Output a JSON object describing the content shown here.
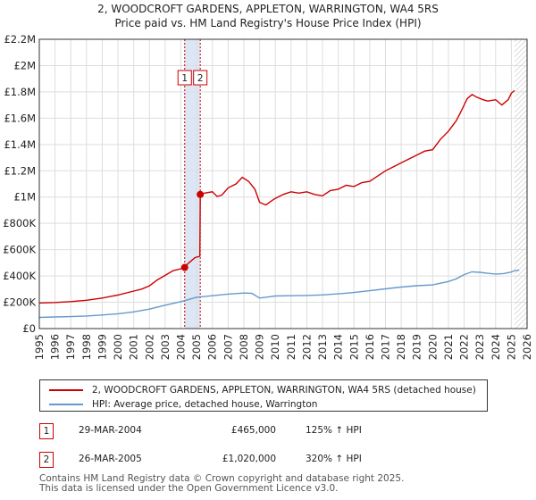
{
  "chart_data": {
    "type": "line",
    "title": [
      "2, WOODCROFT GARDENS, APPLETON, WARRINGTON, WA4 5RS",
      "Price paid vs. HM Land Registry's House Price Index (HPI)"
    ],
    "x_range": [
      1995,
      2026
    ],
    "ylim": [
      0,
      2200000
    ],
    "y_ticks": [
      0,
      200000,
      400000,
      600000,
      800000,
      1000000,
      1200000,
      1400000,
      1600000,
      1800000,
      2000000,
      2200000
    ],
    "y_tick_labels": [
      "£0",
      "£200K",
      "£400K",
      "£600K",
      "£800K",
      "£1M",
      "£1.2M",
      "£1.4M",
      "£1.6M",
      "£1.8M",
      "£2M",
      "£2.2M"
    ],
    "x_ticks": [
      1995,
      1996,
      1997,
      1998,
      1999,
      2000,
      2001,
      2002,
      2003,
      2004,
      2005,
      2006,
      2007,
      2008,
      2009,
      2010,
      2011,
      2012,
      2013,
      2014,
      2015,
      2016,
      2017,
      2018,
      2019,
      2020,
      2021,
      2022,
      2023,
      2024,
      2025,
      2026
    ],
    "grid": true,
    "sale_span": [
      2004.24,
      2005.23
    ],
    "hatch_from": 2025.2,
    "series": [
      {
        "name": "2, WOODCROFT GARDENS, APPLETON, WARRINGTON, WA4 5RS (detached house)",
        "color": "#cc0000",
        "points": [
          [
            1995,
            195000
          ],
          [
            1996,
            198000
          ],
          [
            1997,
            205000
          ],
          [
            1998,
            215000
          ],
          [
            1999,
            232000
          ],
          [
            2000,
            255000
          ],
          [
            2001,
            285000
          ],
          [
            2001.5,
            300000
          ],
          [
            2002,
            325000
          ],
          [
            2002.5,
            370000
          ],
          [
            2003,
            405000
          ],
          [
            2003.5,
            440000
          ],
          [
            2004,
            455000
          ],
          [
            2004.24,
            465000
          ],
          [
            2004.5,
            500000
          ],
          [
            2004.9,
            540000
          ],
          [
            2005.2,
            550000
          ],
          [
            2005.23,
            1020000
          ],
          [
            2005.5,
            1030000
          ],
          [
            2006,
            1040000
          ],
          [
            2006.3,
            1005000
          ],
          [
            2006.6,
            1015000
          ],
          [
            2007,
            1070000
          ],
          [
            2007.5,
            1100000
          ],
          [
            2007.9,
            1150000
          ],
          [
            2008.3,
            1120000
          ],
          [
            2008.7,
            1060000
          ],
          [
            2009,
            960000
          ],
          [
            2009.4,
            940000
          ],
          [
            2009.8,
            975000
          ],
          [
            2010,
            990000
          ],
          [
            2010.5,
            1020000
          ],
          [
            2011,
            1040000
          ],
          [
            2011.5,
            1030000
          ],
          [
            2012,
            1040000
          ],
          [
            2012.5,
            1020000
          ],
          [
            2013,
            1010000
          ],
          [
            2013.5,
            1050000
          ],
          [
            2014,
            1060000
          ],
          [
            2014.5,
            1090000
          ],
          [
            2015,
            1080000
          ],
          [
            2015.5,
            1110000
          ],
          [
            2016,
            1120000
          ],
          [
            2016.5,
            1160000
          ],
          [
            2017,
            1200000
          ],
          [
            2017.5,
            1230000
          ],
          [
            2018,
            1260000
          ],
          [
            2018.5,
            1290000
          ],
          [
            2019,
            1320000
          ],
          [
            2019.5,
            1350000
          ],
          [
            2020,
            1360000
          ],
          [
            2020.5,
            1440000
          ],
          [
            2021,
            1500000
          ],
          [
            2021.5,
            1580000
          ],
          [
            2021.8,
            1650000
          ],
          [
            2022.2,
            1750000
          ],
          [
            2022.5,
            1780000
          ],
          [
            2022.8,
            1760000
          ],
          [
            2023.2,
            1740000
          ],
          [
            2023.5,
            1730000
          ],
          [
            2024,
            1740000
          ],
          [
            2024.4,
            1700000
          ],
          [
            2024.8,
            1740000
          ],
          [
            2025,
            1790000
          ],
          [
            2025.2,
            1810000
          ]
        ]
      },
      {
        "name": "HPI: Average price, detached house, Warrington",
        "color": "#6699cc",
        "points": [
          [
            1995,
            85000
          ],
          [
            1996,
            88000
          ],
          [
            1997,
            91000
          ],
          [
            1998,
            96000
          ],
          [
            1999,
            103000
          ],
          [
            2000,
            113000
          ],
          [
            2001,
            127000
          ],
          [
            2002,
            148000
          ],
          [
            2003,
            178000
          ],
          [
            2004,
            205000
          ],
          [
            2005,
            238000
          ],
          [
            2006,
            250000
          ],
          [
            2007,
            262000
          ],
          [
            2008,
            270000
          ],
          [
            2008.5,
            268000
          ],
          [
            2009,
            232000
          ],
          [
            2009.5,
            240000
          ],
          [
            2010,
            248000
          ],
          [
            2011,
            250000
          ],
          [
            2012,
            252000
          ],
          [
            2013,
            256000
          ],
          [
            2014,
            264000
          ],
          [
            2015,
            274000
          ],
          [
            2016,
            288000
          ],
          [
            2017,
            302000
          ],
          [
            2018,
            316000
          ],
          [
            2019,
            326000
          ],
          [
            2020,
            332000
          ],
          [
            2021,
            358000
          ],
          [
            2021.5,
            378000
          ],
          [
            2022,
            410000
          ],
          [
            2022.5,
            432000
          ],
          [
            2023,
            428000
          ],
          [
            2023.5,
            420000
          ],
          [
            2024,
            415000
          ],
          [
            2024.5,
            418000
          ],
          [
            2025,
            430000
          ],
          [
            2025.2,
            440000
          ],
          [
            2025.5,
            445000
          ]
        ]
      }
    ],
    "markers": [
      {
        "label": "1",
        "x": 2004.24,
        "y": 465000
      },
      {
        "label": "2",
        "x": 2005.23,
        "y": 1020000
      }
    ]
  },
  "legend": {
    "property_label": "2, WOODCROFT GARDENS, APPLETON, WARRINGTON, WA4 5RS (detached house)",
    "hpi_label": "HPI: Average price, detached house, Warrington"
  },
  "transactions": [
    {
      "num": "1",
      "date": "29-MAR-2004",
      "price": "£465,000",
      "hpi": "125% ↑ HPI"
    },
    {
      "num": "2",
      "date": "26-MAR-2005",
      "price": "£1,020,000",
      "hpi": "320% ↑ HPI"
    }
  ],
  "footer": {
    "line1": "Contains HM Land Registry data © Crown copyright and database right 2025.",
    "line2": "This data is licensed under the Open Government Licence v3.0."
  },
  "colors": {
    "property": "#cc0000",
    "hpi": "#6699cc",
    "grid": "#dddddd",
    "plot_bg": "#ffffff",
    "span": "#dde6f5"
  }
}
